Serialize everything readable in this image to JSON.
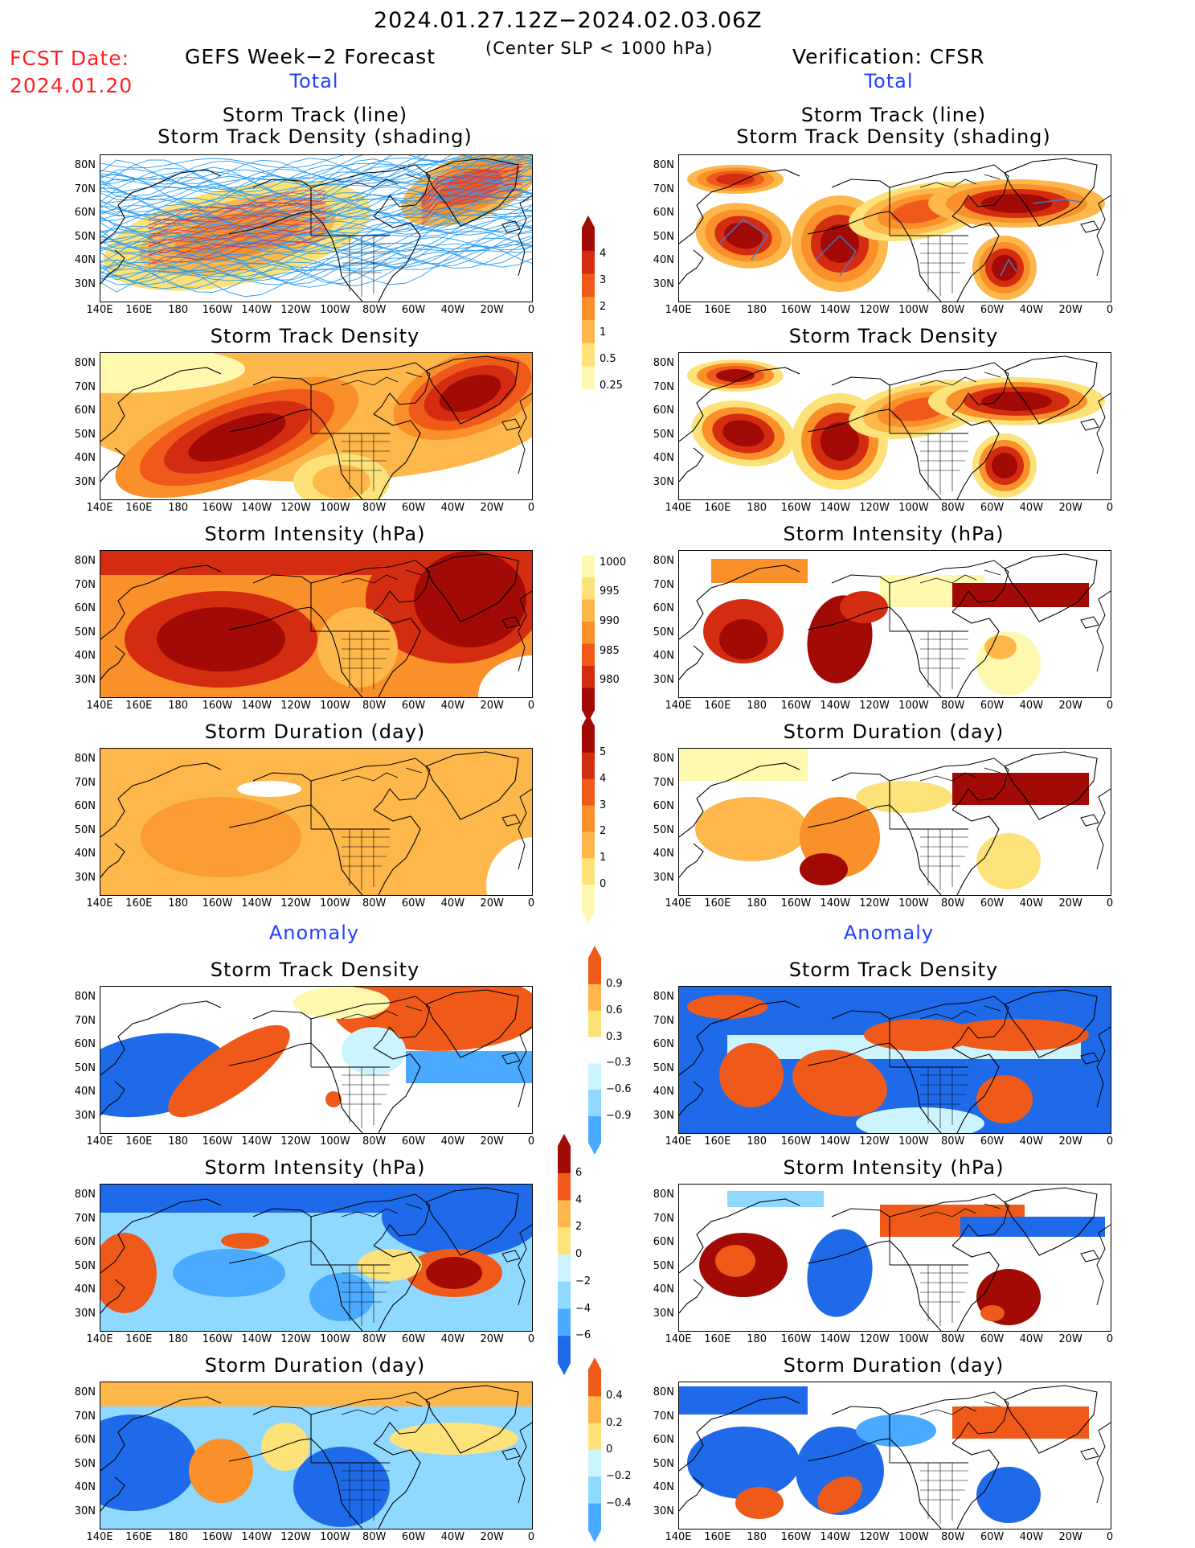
{
  "header": {
    "date_range": "2024.01.27.12Z−2024.02.03.06Z",
    "fcst_label": "FCST Date:",
    "fcst_date": "2024.01.20",
    "left_title": "GEFS Week−2 Forecast",
    "center_subtitle": "(Center SLP < 1000 hPa)",
    "right_title": "Verification: CFSR",
    "left_section_total": "Total",
    "right_section_total": "Total",
    "left_section_anomaly": "Anomaly",
    "right_section_anomaly": "Anomaly"
  },
  "panel_titles": {
    "track_line": "Storm Track (line)",
    "track_shading": "Storm Track Density (shading)",
    "density": "Storm Track Density",
    "intensity": "Storm Intensity (hPa)",
    "duration": "Storm Duration (day)"
  },
  "axes": {
    "lat_labels": [
      "80N",
      "70N",
      "60N",
      "50N",
      "40N",
      "30N"
    ],
    "lon_labels": [
      "140E",
      "160E",
      "180",
      "160W",
      "140W",
      "120W",
      "100W",
      "80W",
      "60W",
      "40W",
      "20W",
      "0"
    ]
  },
  "colorbars": {
    "density_total": [
      "4",
      "3",
      "2",
      "1",
      "0.5",
      "0.25"
    ],
    "intensity_total": [
      "1000",
      "995",
      "990",
      "985",
      "980"
    ],
    "duration_total": [
      "5",
      "4",
      "3",
      "2",
      "1",
      "0"
    ],
    "density_anom": [
      "0.9",
      "0.6",
      "0.3",
      "−0.3",
      "−0.6",
      "−0.9"
    ],
    "intensity_anom": [
      "6",
      "4",
      "2",
      "0",
      "−2",
      "−4",
      "−6"
    ],
    "duration_anom": [
      "0.4",
      "0.2",
      "0",
      "−0.2",
      "−0.4"
    ]
  },
  "colors": {
    "warm": [
      "#fff9b0",
      "#fde27a",
      "#fdb74a",
      "#f9902a",
      "#ef5a1a",
      "#d42c10",
      "#a10a05"
    ],
    "cool": [
      "#ccf4ff",
      "#8fd8ff",
      "#4aaaff",
      "#1e6ae8"
    ],
    "track_line": "#2a9df4",
    "track_strong": "#cc3355",
    "section_title": "#1f3fff",
    "fcst_text": "#ff2020"
  }
}
